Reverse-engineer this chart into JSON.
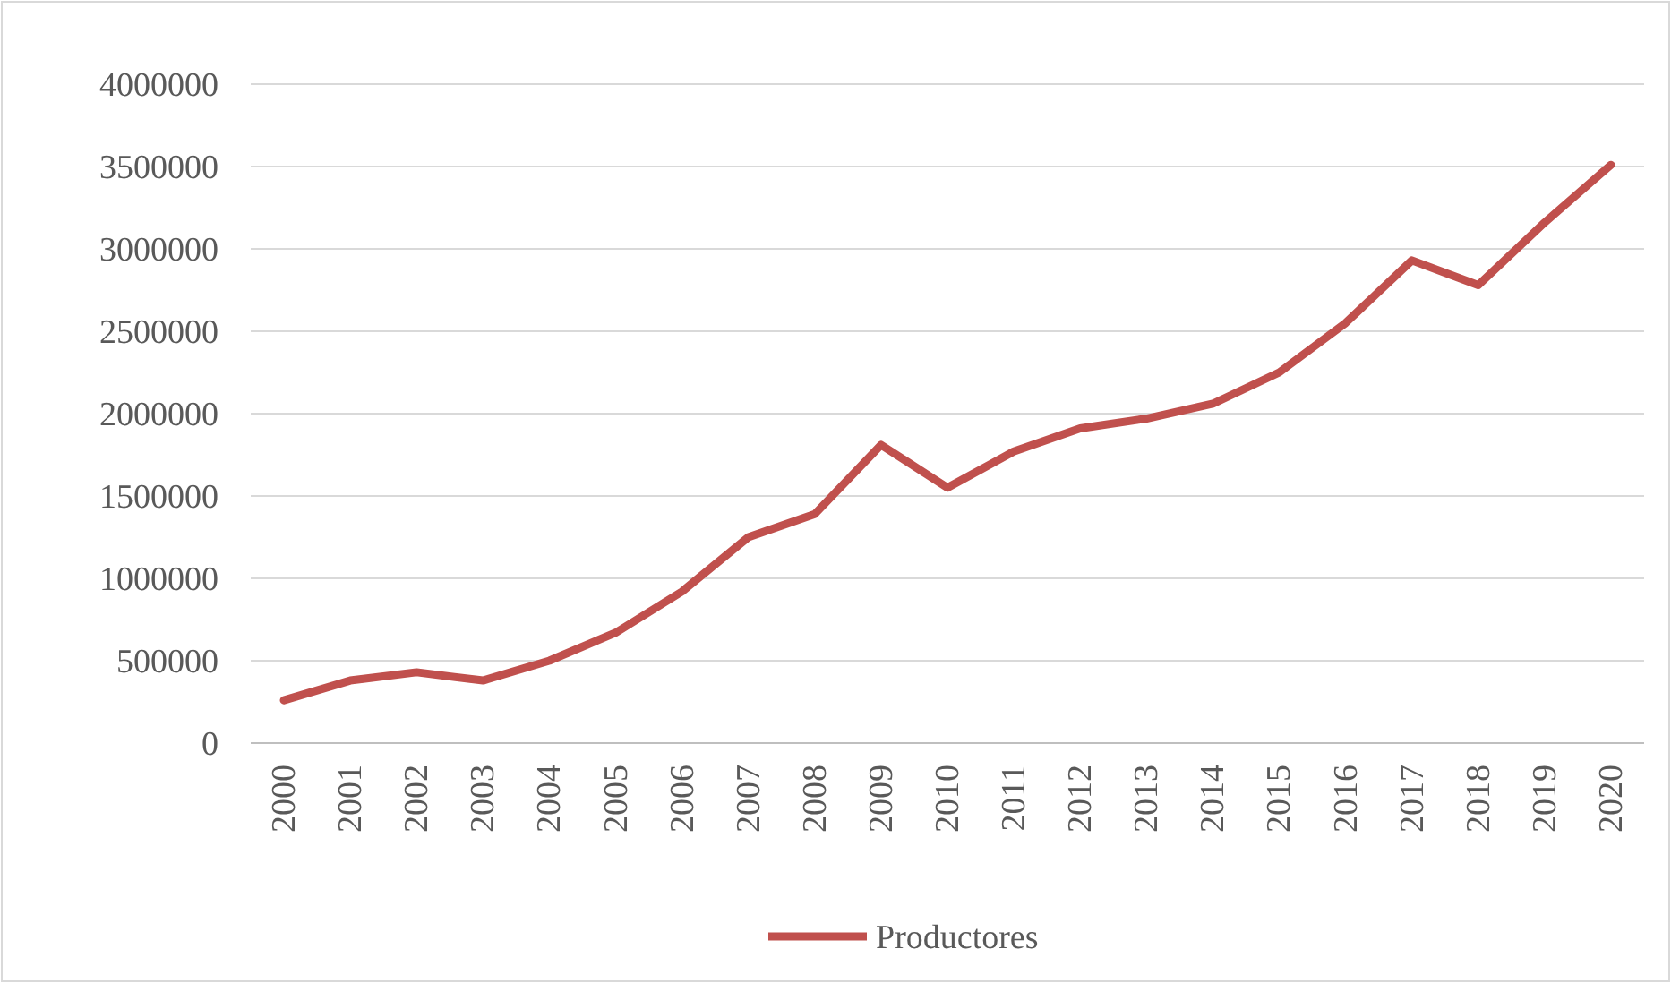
{
  "chart_data": {
    "type": "line",
    "categories": [
      "2000",
      "2001",
      "2002",
      "2003",
      "2004",
      "2005",
      "2006",
      "2007",
      "2008",
      "2009",
      "2010",
      "2011",
      "2012",
      "2013",
      "2014",
      "2015",
      "2016",
      "2017",
      "2018",
      "2019",
      "2020"
    ],
    "series": [
      {
        "name": "Productores",
        "color": "#c0504d",
        "values": [
          260000,
          380000,
          430000,
          380000,
          500000,
          670000,
          920000,
          1250000,
          1390000,
          1810000,
          1550000,
          1770000,
          1910000,
          1970000,
          2060000,
          2250000,
          2550000,
          2930000,
          2780000,
          3160000,
          3510000
        ]
      }
    ],
    "ylim": [
      0,
      4000000
    ],
    "yticks": [
      0,
      500000,
      1000000,
      1500000,
      2000000,
      2500000,
      3000000,
      3500000,
      4000000
    ],
    "grid": "y",
    "legend": "bottom",
    "marker": "none",
    "line_style": "solid"
  }
}
